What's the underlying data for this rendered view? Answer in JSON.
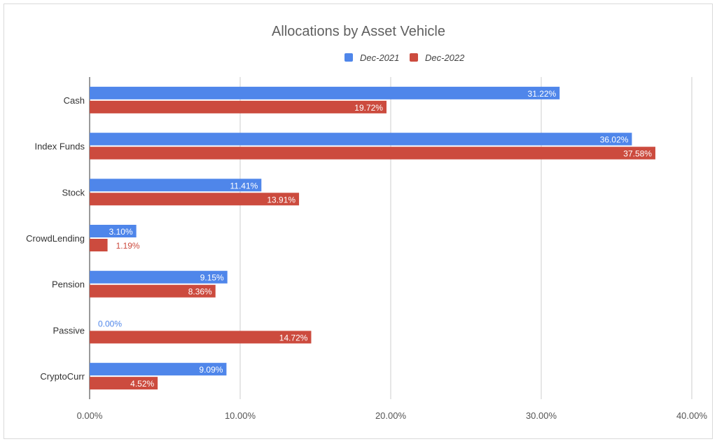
{
  "chart_data": {
    "type": "bar",
    "orientation": "horizontal",
    "title": "Allocations by Asset Vehicle",
    "categories": [
      "Cash",
      "Index Funds",
      "Stock",
      "CrowdLending",
      "Pension",
      "Passive",
      "CryptoCurr"
    ],
    "series": [
      {
        "name": "Dec-2021",
        "color": "#4f86ea",
        "values": [
          31.22,
          36.02,
          11.41,
          3.1,
          9.15,
          0.0,
          9.09
        ],
        "labels": [
          "31.22%",
          "36.02%",
          "11.41%",
          "3.10%",
          "9.15%",
          "0.00%",
          "9.09%"
        ]
      },
      {
        "name": "Dec-2022",
        "color": "#cc4b3e",
        "values": [
          19.72,
          37.58,
          13.91,
          1.19,
          8.36,
          14.72,
          4.52
        ],
        "labels": [
          "19.72%",
          "37.58%",
          "13.91%",
          "1.19%",
          "8.36%",
          "14.72%",
          "4.52%"
        ]
      }
    ],
    "xlim": [
      0,
      40
    ],
    "x_ticks": [
      0,
      10,
      20,
      30,
      40
    ],
    "x_tick_labels": [
      "0.00%",
      "10.00%",
      "20.00%",
      "30.00%",
      "40.00%"
    ],
    "xlabel": "",
    "ylabel": "",
    "grid": true,
    "legend_position": "top-center"
  }
}
